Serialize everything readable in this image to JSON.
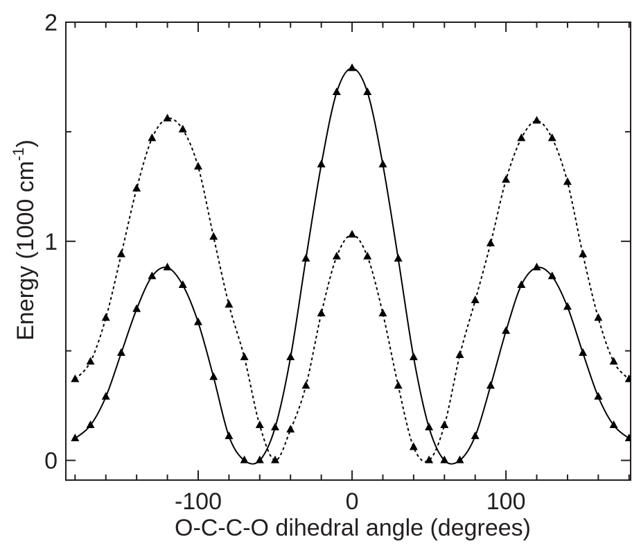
{
  "chart_data": {
    "type": "line",
    "x_label": "O-C-C-O dihedral angle (degrees)",
    "y_label": "Energy (1000 cm",
    "y_label_sup": "-1",
    "y_label_end": ")",
    "x": [
      -180,
      -170,
      -160,
      -150,
      -140,
      -130,
      -120,
      -110,
      -100,
      -90,
      -80,
      -70,
      -60,
      -50,
      -40,
      -30,
      -20,
      -10,
      0,
      10,
      20,
      30,
      40,
      50,
      60,
      70,
      80,
      90,
      100,
      110,
      120,
      130,
      140,
      150,
      160,
      170,
      180
    ],
    "series": [
      {
        "color": "#000000",
        "dash": false,
        "marker": "triangle",
        "values": [
          0.1,
          0.16,
          0.29,
          0.49,
          0.69,
          0.84,
          0.88,
          0.8,
          0.63,
          0.38,
          0.11,
          0.0,
          0.0,
          0.15,
          0.47,
          0.92,
          1.35,
          1.68,
          1.79,
          1.68,
          1.35,
          0.92,
          0.47,
          0.15,
          0.0,
          0.0,
          0.11,
          0.34,
          0.59,
          0.8,
          0.88,
          0.84,
          0.7,
          0.49,
          0.29,
          0.16,
          0.1
        ]
      },
      {
        "color": "#000000",
        "dash": true,
        "marker": "triangle",
        "values": [
          0.37,
          0.45,
          0.65,
          0.94,
          1.24,
          1.47,
          1.56,
          1.51,
          1.34,
          1.02,
          0.71,
          0.47,
          0.16,
          0.0,
          0.14,
          0.34,
          0.67,
          0.93,
          1.03,
          0.93,
          0.67,
          0.34,
          0.06,
          0.0,
          0.16,
          0.48,
          0.73,
          0.99,
          1.28,
          1.47,
          1.55,
          1.47,
          1.27,
          0.94,
          0.65,
          0.45,
          0.37
        ]
      }
    ],
    "xlim": [
      -186,
      181
    ],
    "ylim": [
      -0.09,
      2.0
    ],
    "xticks": [
      -100,
      0,
      100
    ],
    "x_minor_ticks": [
      -180,
      -160,
      -140,
      -120,
      -80,
      -60,
      -40,
      -20,
      20,
      40,
      60,
      80,
      120,
      140,
      160,
      180
    ],
    "yticks": [
      0,
      1,
      2
    ],
    "y_minor_ticks": [
      0.5,
      1.5
    ]
  }
}
